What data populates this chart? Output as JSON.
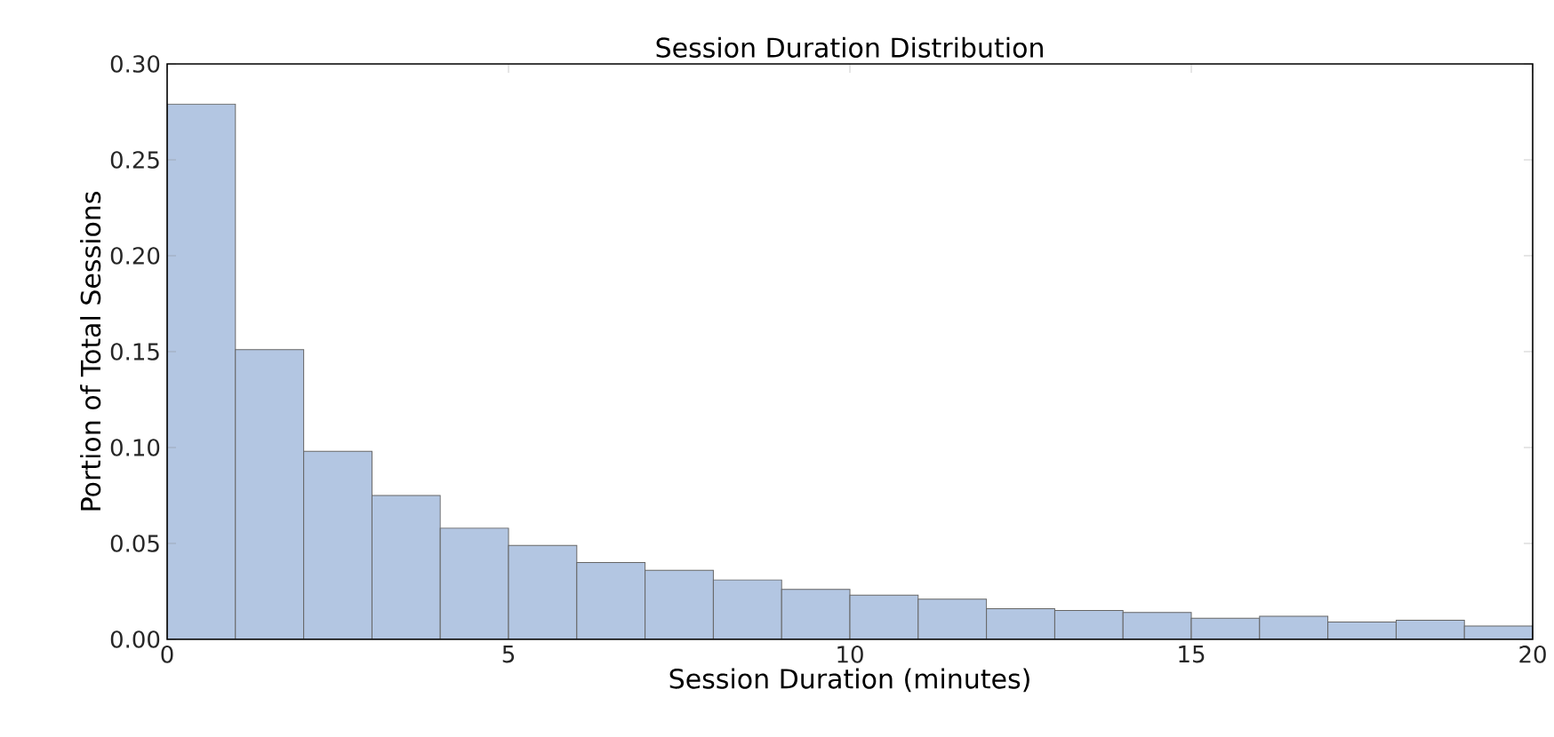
{
  "chart_data": {
    "type": "histogram",
    "title": "Session Duration Distribution",
    "xlabel": "Session Duration (minutes)",
    "ylabel": "Portion of Total Sessions",
    "bins": [
      0,
      1,
      2,
      3,
      4,
      5,
      6,
      7,
      8,
      9,
      10,
      11,
      12,
      13,
      14,
      15,
      16,
      17,
      18,
      19,
      20
    ],
    "values": [
      0.279,
      0.151,
      0.098,
      0.075,
      0.058,
      0.049,
      0.04,
      0.036,
      0.031,
      0.026,
      0.023,
      0.021,
      0.016,
      0.015,
      0.014,
      0.011,
      0.012,
      0.009,
      0.01,
      0.007
    ],
    "color": "#b3c6e2",
    "xlim": [
      0,
      20
    ],
    "xticks": [
      0,
      5,
      10,
      15,
      20
    ],
    "ylim": [
      0,
      0.3
    ],
    "yticks": [
      {
        "value": 0,
        "label": "0.00"
      },
      {
        "value": 0.05,
        "label": "0.05"
      },
      {
        "value": 0.1,
        "label": "0.10"
      },
      {
        "value": 0.15,
        "label": "0.15"
      },
      {
        "value": 0.2,
        "label": "0.20"
      },
      {
        "value": 0.25,
        "label": "0.25"
      },
      {
        "value": 0.3,
        "label": "0.30"
      }
    ],
    "grid": false
  }
}
